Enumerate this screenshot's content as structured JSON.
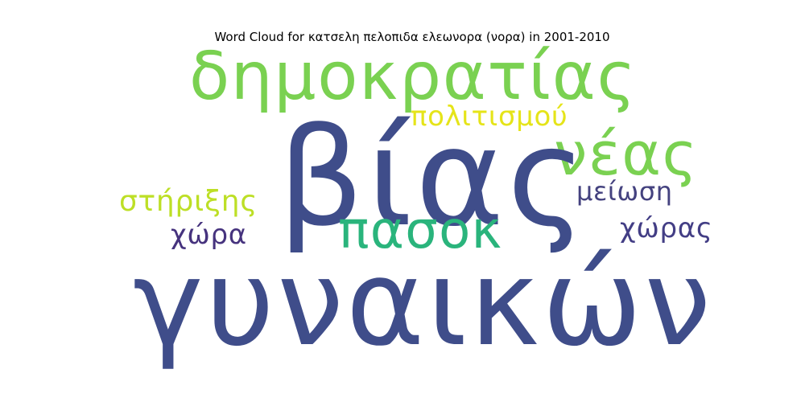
{
  "title": "Word Cloud for κατσελη πελοπιδα ελεωνορα (νορα) in 2001-2010",
  "words": [
    {
      "text": "γυναικών",
      "color": "#3f4d8a"
    },
    {
      "text": "βίας",
      "color": "#3f4d8a"
    },
    {
      "text": "δημοκρατίας",
      "color": "#7ad151"
    },
    {
      "text": "νέας",
      "color": "#7ad151"
    },
    {
      "text": "πασοκ",
      "color": "#2ab47c"
    },
    {
      "text": "πολιτισμού",
      "color": "#e5e419"
    },
    {
      "text": "στήριξης",
      "color": "#bddf26"
    },
    {
      "text": "μείωση",
      "color": "#44427f"
    },
    {
      "text": "χώρα",
      "color": "#46337e"
    },
    {
      "text": "χώρας",
      "color": "#433e85"
    }
  ]
}
